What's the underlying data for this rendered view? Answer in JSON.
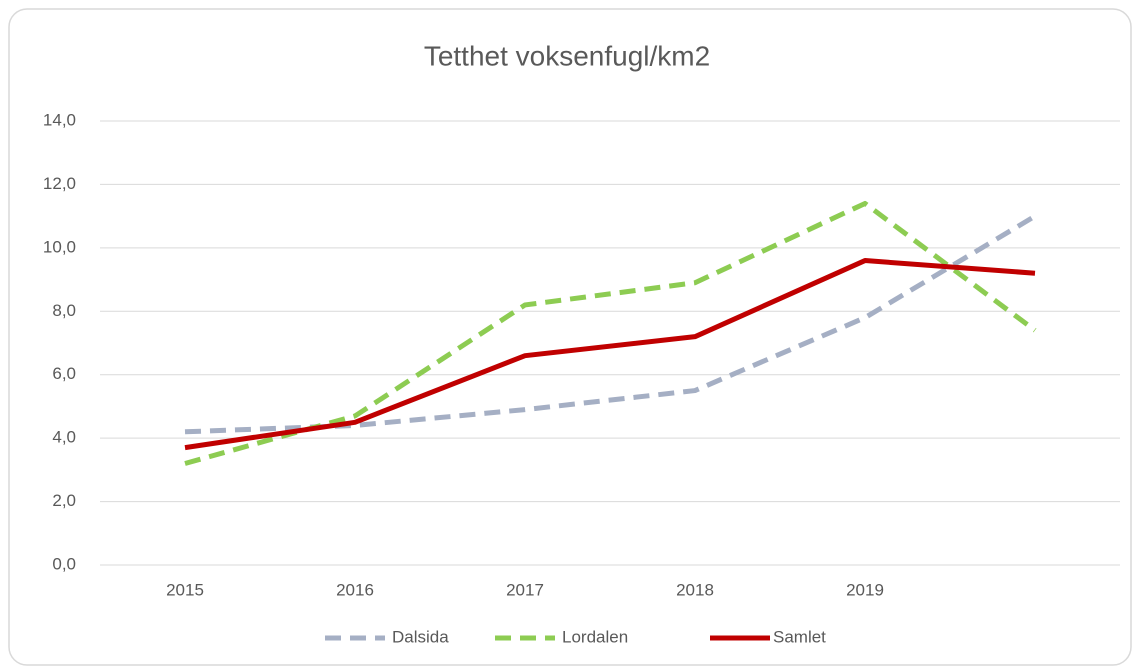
{
  "chart_data": {
    "type": "line",
    "title": "Tetthet voksenfugl/km2",
    "categories": [
      "2015",
      "2016",
      "2017",
      "2018",
      "2019",
      null
    ],
    "series": [
      {
        "name": "Dalsida",
        "color": "#a5afc4",
        "dashed": true,
        "values": [
          4.2,
          4.4,
          4.9,
          5.5,
          7.8,
          11.0
        ]
      },
      {
        "name": "Lordalen",
        "color": "#8dcc52",
        "dashed": true,
        "values": [
          3.2,
          4.7,
          8.2,
          8.9,
          11.4,
          7.4
        ]
      },
      {
        "name": "Samlet",
        "color": "#c00000",
        "dashed": false,
        "values": [
          3.7,
          4.5,
          6.6,
          7.2,
          9.6,
          9.2
        ]
      }
    ],
    "ylim": [
      0,
      14
    ],
    "yticks": [
      {
        "value": 0,
        "label": "0,0"
      },
      {
        "value": 2,
        "label": "2,0"
      },
      {
        "value": 4,
        "label": "4,0"
      },
      {
        "value": 6,
        "label": "6,0"
      },
      {
        "value": 8,
        "label": "8,0"
      },
      {
        "value": 10,
        "label": "10,0"
      },
      {
        "value": 12,
        "label": "12,0"
      },
      {
        "value": 14,
        "label": "14,0"
      }
    ],
    "grid": true,
    "legend": "bottom"
  }
}
